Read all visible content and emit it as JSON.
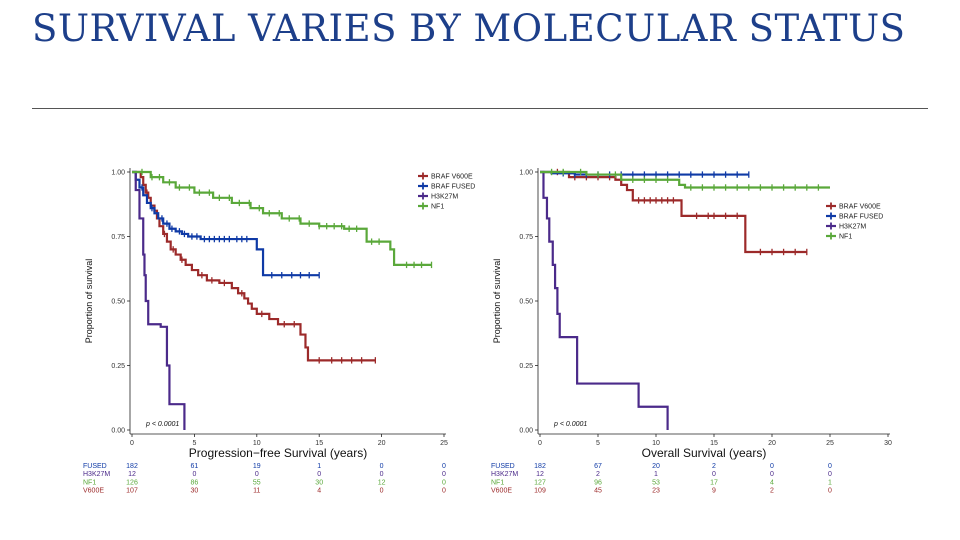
{
  "slide": {
    "title": "SURVIVAL VARIES BY MOLECULAR STATUS",
    "accent_color": "#1d3f8a",
    "rule_color": "#555555"
  },
  "chart_data": [
    {
      "type": "line",
      "subtype": "kaplan-meier",
      "title": "",
      "xlabel": "Progression−free Survival (years)",
      "ylabel": "Proportion of survival",
      "xlim": [
        0,
        25
      ],
      "ylim": [
        0,
        1
      ],
      "x_ticks": [
        0,
        5,
        10,
        15,
        20,
        25
      ],
      "y_ticks": [
        "0.00",
        "0.25",
        "0.50",
        "0.75",
        "1.00"
      ],
      "grid": false,
      "legend_position": "top-right",
      "pvalue": "p < 0.0001",
      "series": [
        {
          "name": "BRAF V600E",
          "color": "#9c2a2a",
          "points": [
            [
              0,
              1.0
            ],
            [
              0.7,
              0.98
            ],
            [
              0.9,
              0.95
            ],
            [
              1.1,
              0.92
            ],
            [
              1.3,
              0.9
            ],
            [
              1.5,
              0.87
            ],
            [
              1.8,
              0.85
            ],
            [
              2.0,
              0.82
            ],
            [
              2.2,
              0.79
            ],
            [
              2.5,
              0.76
            ],
            [
              2.8,
              0.73
            ],
            [
              3.1,
              0.7
            ],
            [
              3.5,
              0.68
            ],
            [
              3.9,
              0.66
            ],
            [
              4.3,
              0.64
            ],
            [
              4.8,
              0.62
            ],
            [
              5.3,
              0.6
            ],
            [
              6.0,
              0.58
            ],
            [
              7.0,
              0.57
            ],
            [
              8.0,
              0.55
            ],
            [
              8.5,
              0.53
            ],
            [
              9.0,
              0.51
            ],
            [
              9.3,
              0.49
            ],
            [
              9.6,
              0.47
            ],
            [
              10.0,
              0.45
            ],
            [
              11.0,
              0.43
            ],
            [
              11.7,
              0.41
            ],
            [
              13.5,
              0.37
            ],
            [
              13.9,
              0.32
            ],
            [
              14.1,
              0.27
            ],
            [
              19.5,
              0.27
            ]
          ],
          "censor_x": [
            1.2,
            2.6,
            3.3,
            4.0,
            5.6,
            6.4,
            7.4,
            8.8,
            10.4,
            12.2,
            13.0,
            15.0,
            16.0,
            16.8,
            17.6,
            18.4,
            19.5
          ]
        },
        {
          "name": "BRAF FUSED",
          "color": "#0f3aa6",
          "points": [
            [
              0,
              1.0
            ],
            [
              0.3,
              0.97
            ],
            [
              0.6,
              0.94
            ],
            [
              0.9,
              0.91
            ],
            [
              1.2,
              0.88
            ],
            [
              1.5,
              0.86
            ],
            [
              1.8,
              0.84
            ],
            [
              2.1,
              0.82
            ],
            [
              2.5,
              0.8
            ],
            [
              3.0,
              0.78
            ],
            [
              3.5,
              0.77
            ],
            [
              4.0,
              0.76
            ],
            [
              4.5,
              0.75
            ],
            [
              5.5,
              0.74
            ],
            [
              10.0,
              0.7
            ],
            [
              10.5,
              0.6
            ],
            [
              15.0,
              0.6
            ]
          ],
          "censor_x": [
            0.8,
            1.6,
            2.4,
            2.8,
            3.2,
            3.8,
            4.2,
            4.8,
            5.2,
            5.8,
            6.2,
            6.6,
            7.0,
            7.4,
            7.8,
            8.4,
            8.8,
            9.2,
            11.2,
            12.0,
            12.8,
            13.5,
            14.2,
            15.0
          ]
        },
        {
          "name": "H3K27M",
          "color": "#4b2a8a",
          "points": [
            [
              0,
              1.0
            ],
            [
              0.3,
              0.93
            ],
            [
              0.6,
              0.82
            ],
            [
              0.9,
              0.68
            ],
            [
              1.0,
              0.6
            ],
            [
              1.1,
              0.5
            ],
            [
              1.3,
              0.41
            ],
            [
              1.5,
              0.41
            ],
            [
              2.3,
              0.4
            ],
            [
              2.8,
              0.25
            ],
            [
              3.0,
              0.1
            ],
            [
              4.2,
              0.1
            ],
            [
              4.2,
              0.0
            ]
          ],
          "censor_x": []
        },
        {
          "name": "NF1",
          "color": "#5aa83a",
          "points": [
            [
              0,
              1.0
            ],
            [
              1.5,
              0.98
            ],
            [
              2.5,
              0.96
            ],
            [
              3.5,
              0.94
            ],
            [
              5.0,
              0.92
            ],
            [
              6.5,
              0.9
            ],
            [
              8.0,
              0.88
            ],
            [
              9.5,
              0.86
            ],
            [
              10.5,
              0.84
            ],
            [
              12.0,
              0.82
            ],
            [
              13.5,
              0.8
            ],
            [
              15.0,
              0.79
            ],
            [
              17.0,
              0.78
            ],
            [
              18.5,
              0.78
            ],
            [
              18.8,
              0.73
            ],
            [
              20.0,
              0.73
            ],
            [
              20.7,
              0.7
            ],
            [
              21.0,
              0.64
            ],
            [
              24.0,
              0.64
            ]
          ],
          "censor_x": [
            0.8,
            1.6,
            2.2,
            3.0,
            3.8,
            4.6,
            5.4,
            6.2,
            7.0,
            7.8,
            8.6,
            9.4,
            10.2,
            11.0,
            11.8,
            12.6,
            13.4,
            14.2,
            15.0,
            15.6,
            16.2,
            16.8,
            17.4,
            18.0,
            19.2,
            19.8,
            22.0,
            22.6,
            23.2,
            24.0
          ]
        }
      ],
      "risk_table": {
        "rows": [
          {
            "label": "FUSED",
            "color": "#0f3aa6",
            "values": [
              "182",
              "61",
              "19",
              "1",
              "0",
              "0"
            ]
          },
          {
            "label": "H3K27M",
            "color": "#4b2a8a",
            "values": [
              "12",
              "0",
              "0",
              "0",
              "0",
              "0"
            ]
          },
          {
            "label": "NF1",
            "color": "#5aa83a",
            "values": [
              "126",
              "86",
              "55",
              "30",
              "12",
              "0"
            ]
          },
          {
            "label": "V600E",
            "color": "#9c2a2a",
            "values": [
              "107",
              "30",
              "11",
              "4",
              "0",
              "0"
            ]
          }
        ]
      }
    },
    {
      "type": "line",
      "subtype": "kaplan-meier",
      "title": "",
      "xlabel": "Overall Survival (years)",
      "ylabel": "Proportion of survival",
      "xlim": [
        0,
        30
      ],
      "ylim": [
        0,
        1
      ],
      "x_ticks": [
        0,
        5,
        10,
        15,
        20,
        25,
        30
      ],
      "y_ticks": [
        "0.00",
        "0.25",
        "0.50",
        "0.75",
        "1.00"
      ],
      "grid": false,
      "legend_position": "right",
      "pvalue": "p < 0.0001",
      "series": [
        {
          "name": "BRAF V600E",
          "color": "#9c2a2a",
          "points": [
            [
              0,
              1.0
            ],
            [
              2.5,
              0.98
            ],
            [
              6.5,
              0.97
            ],
            [
              7.0,
              0.95
            ],
            [
              7.5,
              0.93
            ],
            [
              8.0,
              0.89
            ],
            [
              12.0,
              0.89
            ],
            [
              12.2,
              0.83
            ],
            [
              17.0,
              0.83
            ],
            [
              17.7,
              0.69
            ],
            [
              23.0,
              0.69
            ]
          ],
          "censor_x": [
            1.5,
            3.0,
            4.0,
            5.0,
            6.0,
            8.5,
            9.0,
            9.5,
            10.0,
            10.5,
            11.0,
            11.5,
            13.5,
            14.5,
            15.0,
            16.0,
            17.0,
            19.0,
            20.0,
            21.0,
            22.0,
            23.0
          ]
        },
        {
          "name": "BRAF FUSED",
          "color": "#0f3aa6",
          "points": [
            [
              0,
              1.0
            ],
            [
              1.0,
              0.995
            ],
            [
              3.0,
              0.99
            ],
            [
              18.0,
              0.99
            ]
          ],
          "censor_x": [
            2.0,
            3.0,
            4.0,
            5.0,
            6.0,
            7.0,
            8.0,
            9.0,
            10.0,
            11.0,
            12.0,
            13.0,
            14.0,
            15.0,
            16.0,
            17.0,
            18.0
          ]
        },
        {
          "name": "H3K27M",
          "color": "#4b2a8a",
          "points": [
            [
              0,
              1.0
            ],
            [
              0.3,
              0.9
            ],
            [
              0.6,
              0.82
            ],
            [
              0.8,
              0.73
            ],
            [
              1.1,
              0.64
            ],
            [
              1.3,
              0.55
            ],
            [
              1.5,
              0.45
            ],
            [
              1.7,
              0.36
            ],
            [
              3.0,
              0.36
            ],
            [
              3.2,
              0.18
            ],
            [
              8.5,
              0.18
            ],
            [
              8.5,
              0.09
            ],
            [
              11.0,
              0.09
            ],
            [
              11.0,
              0.0
            ]
          ],
          "censor_x": []
        },
        {
          "name": "NF1",
          "color": "#5aa83a",
          "points": [
            [
              0,
              1.0
            ],
            [
              4.0,
              0.99
            ],
            [
              7.0,
              0.97
            ],
            [
              12.0,
              0.95
            ],
            [
              12.5,
              0.94
            ],
            [
              25.0,
              0.94
            ]
          ],
          "censor_x": [
            1.0,
            2.0,
            3.5,
            5.0,
            6.5,
            8.0,
            9.0,
            10.0,
            11.0,
            13.0,
            14.0,
            15.0,
            16.0,
            17.0,
            18.0,
            19.0,
            20.0,
            21.0,
            22.0,
            23.0,
            24.0
          ]
        }
      ],
      "risk_table": {
        "rows": [
          {
            "label": "FUSED",
            "color": "#0f3aa6",
            "values": [
              "182",
              "67",
              "20",
              "2",
              "0",
              "0"
            ]
          },
          {
            "label": "H3K27M",
            "color": "#4b2a8a",
            "values": [
              "12",
              "2",
              "1",
              "0",
              "0",
              "0"
            ]
          },
          {
            "label": "NF1",
            "color": "#5aa83a",
            "values": [
              "127",
              "96",
              "53",
              "17",
              "4",
              "1"
            ]
          },
          {
            "label": "V600E",
            "color": "#9c2a2a",
            "values": [
              "109",
              "45",
              "23",
              "9",
              "2",
              "0"
            ]
          }
        ]
      }
    }
  ]
}
